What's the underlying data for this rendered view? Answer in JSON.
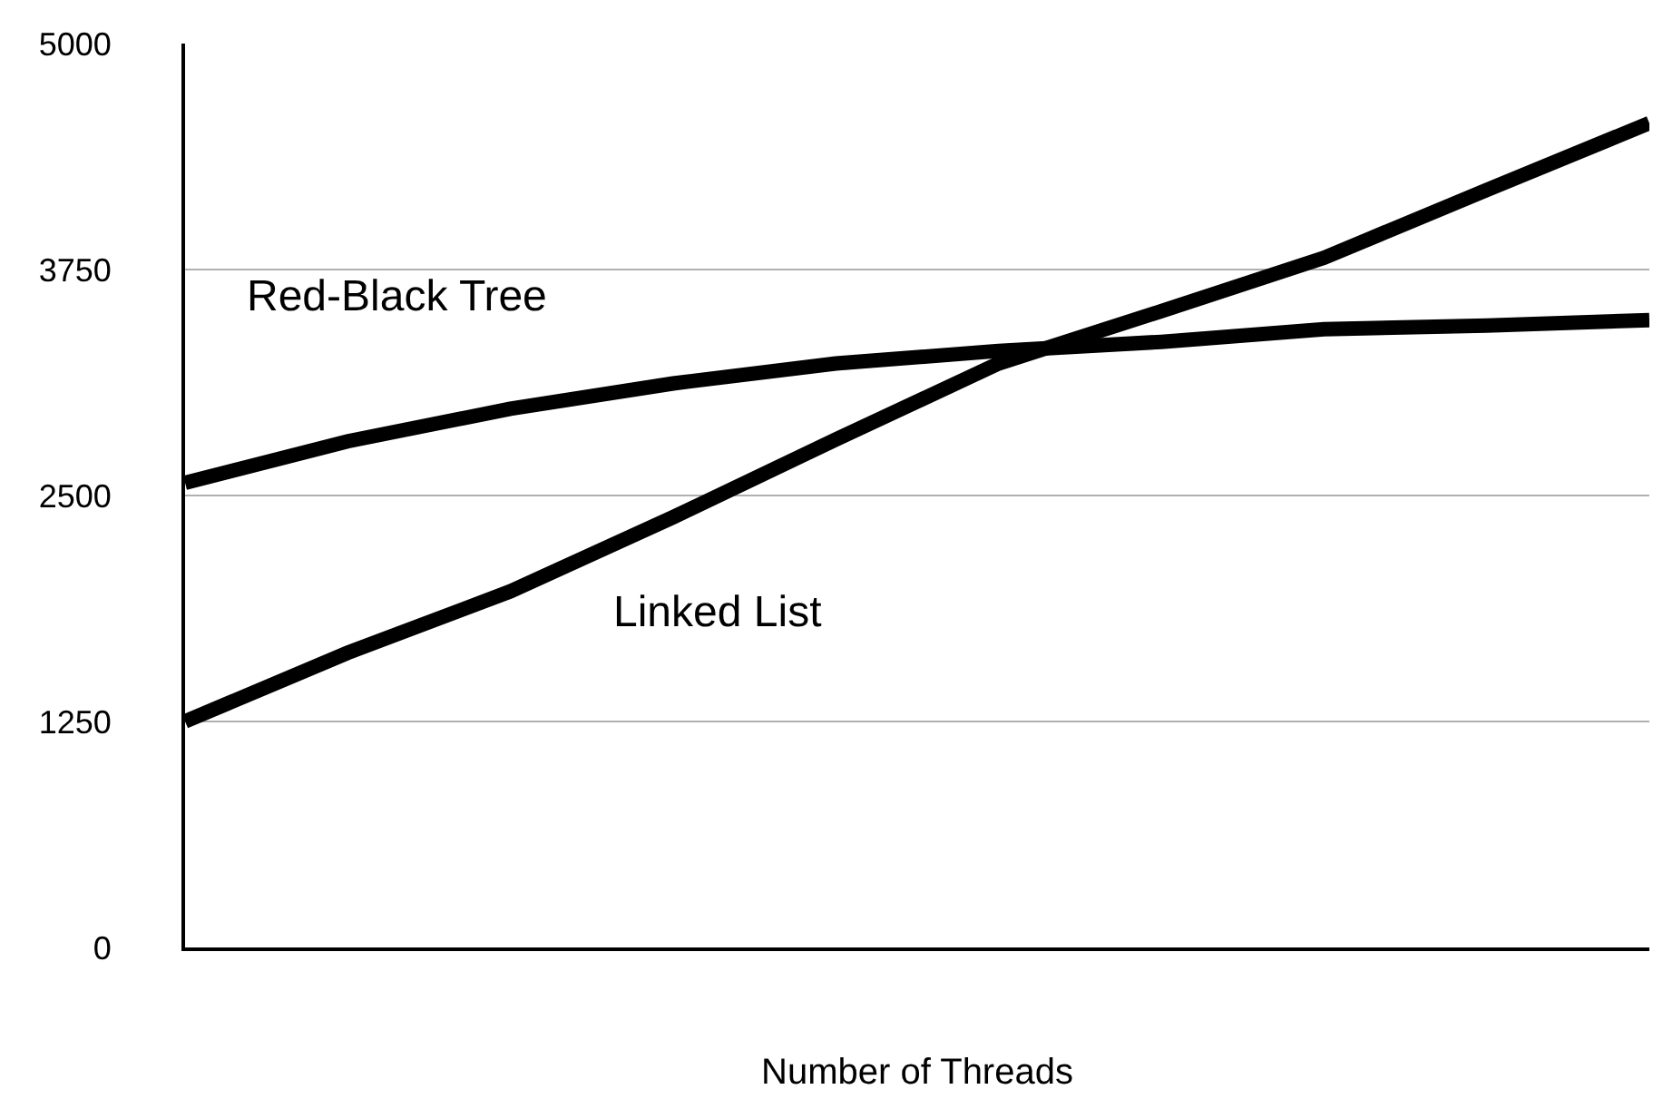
{
  "chart_data": {
    "type": "line",
    "xlabel": "Number of Threads",
    "categories": [
      null,
      null,
      null,
      null,
      null,
      null,
      null,
      null,
      null,
      null
    ],
    "series": [
      {
        "name": "Red-Black Tree",
        "color": "#000000",
        "values": [
          2570,
          2800,
          2980,
          3120,
          3230,
          3300,
          3350,
          3420,
          3440,
          3470
        ]
      },
      {
        "name": "Linked List",
        "color": "#000000",
        "values": [
          1250,
          1630,
          1970,
          2380,
          2810,
          3230,
          3520,
          3815,
          4190,
          4560
        ]
      }
    ],
    "ylim": [
      0,
      5000
    ],
    "yticks": [
      0,
      1250,
      2500,
      3750,
      5000
    ],
    "grid": "y",
    "legend": false,
    "marker": "none",
    "line_style": "solid",
    "tick_labels": "y"
  }
}
